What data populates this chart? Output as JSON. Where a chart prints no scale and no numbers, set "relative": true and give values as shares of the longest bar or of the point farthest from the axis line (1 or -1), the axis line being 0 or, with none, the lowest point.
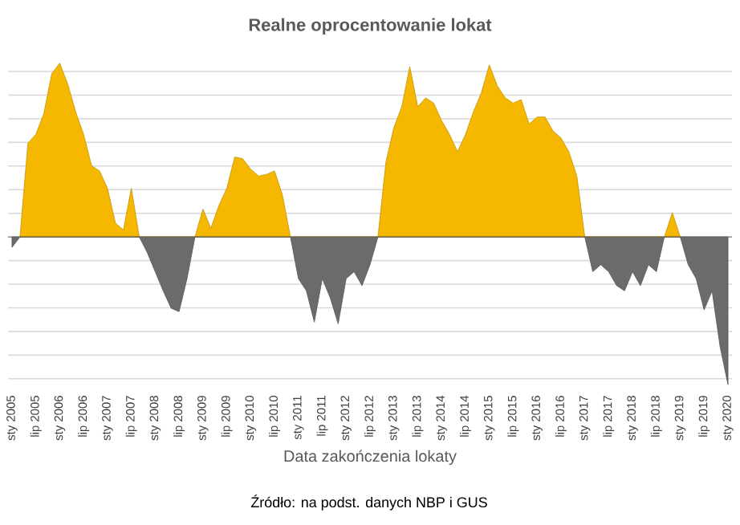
{
  "chart_data": {
    "type": "area",
    "title": "Realne oprocentowanie lokat",
    "xlabel": "Data zakończenia lokaty",
    "relative": true,
    "grid": "y",
    "categories": [
      "sty 2005",
      null,
      null,
      "lip 2005",
      null,
      null,
      "sty 2006",
      null,
      null,
      "lip 2006",
      null,
      null,
      "sty 2007",
      null,
      null,
      "lip 2007",
      null,
      null,
      "sty 2008",
      null,
      null,
      "lip 2008",
      null,
      null,
      "sty 2009",
      null,
      null,
      "lip 2009",
      null,
      null,
      "sty 2010",
      null,
      null,
      "lip 2010",
      null,
      null,
      "sty 2011",
      null,
      null,
      "lip 2011",
      null,
      null,
      "sty 2012",
      null,
      null,
      "lip 2012",
      null,
      null,
      "sty 2013",
      null,
      null,
      "lip 2013",
      null,
      null,
      "sty 2014",
      null,
      null,
      "lip 2014",
      null,
      null,
      "sty 2015",
      null,
      null,
      "lip 2015",
      null,
      null,
      "sty 2016",
      null,
      null,
      "lip 2016",
      null,
      null,
      "sty 2017",
      null,
      null,
      "lip 2017",
      null,
      null,
      "sty 2018",
      null,
      null,
      "lip 2018",
      null,
      null,
      "sty 2019",
      null,
      null,
      "lip 2019",
      null,
      null,
      "sty 2020"
    ],
    "series": [
      {
        "color": "#f5b700",
        "values": [
          null,
          0,
          0.54,
          0.59,
          0.71,
          0.94,
          1,
          0.88,
          0.72,
          0.59,
          0.41,
          0.38,
          0.28,
          0.08,
          0.04,
          0.28,
          0,
          null,
          null,
          null,
          null,
          null,
          null,
          0,
          0.16,
          0.05,
          0.18,
          0.28,
          0.46,
          0.45,
          0.39,
          0.35,
          0.36,
          0.38,
          0.24,
          0,
          null,
          null,
          null,
          null,
          null,
          null,
          null,
          null,
          null,
          null,
          0,
          0.43,
          0.63,
          0.75,
          0.98,
          0.75,
          0.8,
          0.77,
          0.67,
          0.59,
          0.49,
          0.59,
          0.72,
          0.83,
          0.99,
          0.87,
          0.8,
          0.77,
          0.79,
          0.65,
          0.69,
          0.69,
          0.61,
          0.57,
          0.49,
          0.35,
          0,
          null,
          null,
          null,
          null,
          null,
          null,
          null,
          null,
          null,
          0,
          0.14,
          0,
          null,
          null,
          null,
          null,
          null,
          null
        ]
      },
      {
        "color": "#6b6b6b",
        "values": [
          -0.06,
          0,
          null,
          null,
          null,
          null,
          null,
          null,
          null,
          null,
          null,
          null,
          null,
          null,
          null,
          null,
          0,
          -0.09,
          -0.2,
          -0.31,
          -0.41,
          -0.43,
          -0.24,
          0,
          null,
          null,
          null,
          null,
          null,
          null,
          null,
          null,
          null,
          null,
          null,
          0,
          -0.24,
          -0.31,
          -0.49,
          -0.24,
          -0.35,
          -0.5,
          -0.24,
          -0.2,
          -0.28,
          -0.16,
          0,
          null,
          null,
          null,
          null,
          null,
          null,
          null,
          null,
          null,
          null,
          null,
          null,
          null,
          null,
          null,
          null,
          null,
          null,
          null,
          null,
          null,
          null,
          null,
          null,
          null,
          0,
          -0.2,
          -0.16,
          -0.2,
          -0.28,
          -0.31,
          -0.2,
          -0.28,
          -0.16,
          -0.2,
          0,
          null,
          0,
          -0.16,
          -0.24,
          -0.42,
          -0.31,
          -0.63,
          -0.85
        ]
      }
    ],
    "annotations": [
      "Źródło: na podst. danych NBP i GUS"
    ]
  }
}
